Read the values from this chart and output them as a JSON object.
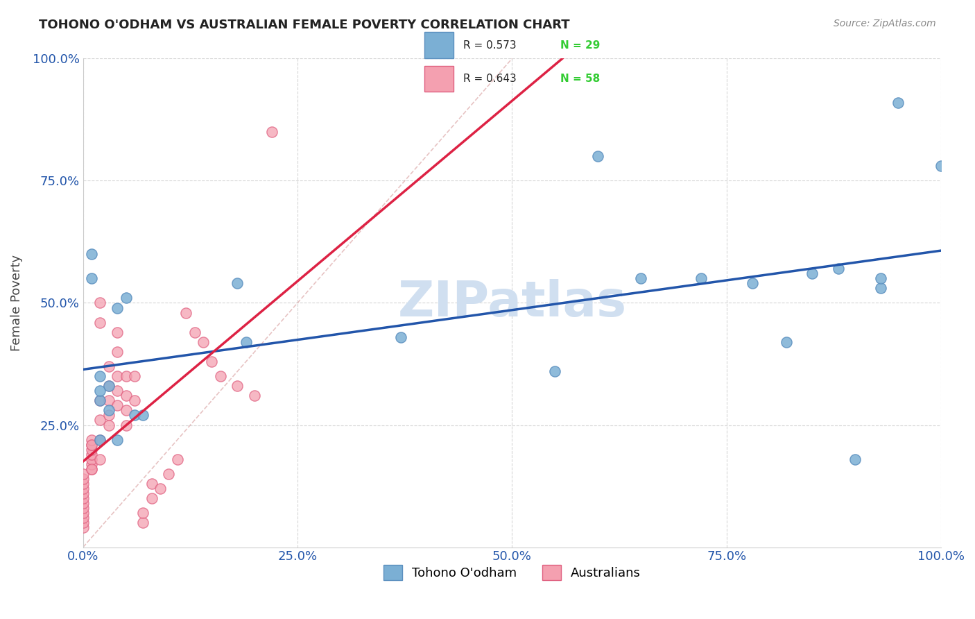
{
  "title": "TOHONO O'ODHAM VS AUSTRALIAN FEMALE POVERTY CORRELATION CHART",
  "source": "Source: ZipAtlas.com",
  "xlabel": "",
  "ylabel": "Female Poverty",
  "xlim": [
    0.0,
    1.0
  ],
  "ylim": [
    0.0,
    1.0
  ],
  "xtick_labels": [
    "0.0%",
    "25.0%",
    "50.0%",
    "75.0%",
    "100.0%"
  ],
  "xtick_vals": [
    0.0,
    0.25,
    0.5,
    0.75,
    1.0
  ],
  "ytick_labels": [
    "25.0%",
    "50.0%",
    "75.0%",
    "100.0%"
  ],
  "ytick_vals": [
    0.25,
    0.5,
    0.75,
    1.0
  ],
  "grid_color": "#cccccc",
  "background_color": "#ffffff",
  "watermark_text": "ZIPatlas",
  "watermark_color": "#d0dff0",
  "tohono_color": "#7bafd4",
  "tohono_edge_color": "#5b8fbf",
  "australians_color": "#f4a0b0",
  "australians_edge_color": "#e06080",
  "tohono_R": 0.573,
  "tohono_N": 29,
  "australians_R": 0.643,
  "australians_N": 58,
  "legend_R_color": "#3366cc",
  "legend_N_color": "#33cc33",
  "tohono_line_color": "#2255aa",
  "australians_line_color": "#dd2244",
  "diagonal_color": "#ddaaaa",
  "tohono_x": [
    0.02,
    0.04,
    0.02,
    0.01,
    0.01,
    0.02,
    0.02,
    0.03,
    0.03,
    0.04,
    0.05,
    0.06,
    0.07,
    0.18,
    0.19,
    0.37,
    0.55,
    0.6,
    0.65,
    0.72,
    0.78,
    0.82,
    0.85,
    0.88,
    0.9,
    0.93,
    0.93,
    0.95,
    1.0
  ],
  "tohono_y": [
    0.22,
    0.22,
    0.3,
    0.55,
    0.6,
    0.32,
    0.35,
    0.28,
    0.33,
    0.49,
    0.51,
    0.27,
    0.27,
    0.54,
    0.42,
    0.43,
    0.36,
    0.8,
    0.55,
    0.55,
    0.54,
    0.42,
    0.56,
    0.57,
    0.18,
    0.53,
    0.55,
    0.91,
    0.78
  ],
  "australians_x": [
    0.0,
    0.0,
    0.0,
    0.0,
    0.0,
    0.0,
    0.0,
    0.0,
    0.0,
    0.0,
    0.0,
    0.0,
    0.01,
    0.01,
    0.01,
    0.01,
    0.01,
    0.01,
    0.01,
    0.01,
    0.01,
    0.02,
    0.02,
    0.02,
    0.02,
    0.02,
    0.02,
    0.03,
    0.03,
    0.03,
    0.03,
    0.03,
    0.04,
    0.04,
    0.04,
    0.04,
    0.04,
    0.05,
    0.05,
    0.05,
    0.05,
    0.06,
    0.06,
    0.07,
    0.07,
    0.08,
    0.08,
    0.09,
    0.1,
    0.11,
    0.12,
    0.13,
    0.14,
    0.15,
    0.16,
    0.18,
    0.2,
    0.22
  ],
  "australians_y": [
    0.04,
    0.05,
    0.06,
    0.07,
    0.08,
    0.09,
    0.1,
    0.11,
    0.12,
    0.13,
    0.14,
    0.15,
    0.16,
    0.17,
    0.18,
    0.19,
    0.2,
    0.21,
    0.22,
    0.16,
    0.21,
    0.18,
    0.22,
    0.26,
    0.3,
    0.46,
    0.5,
    0.25,
    0.27,
    0.3,
    0.33,
    0.37,
    0.29,
    0.32,
    0.35,
    0.4,
    0.44,
    0.25,
    0.28,
    0.31,
    0.35,
    0.3,
    0.35,
    0.05,
    0.07,
    0.1,
    0.13,
    0.12,
    0.15,
    0.18,
    0.48,
    0.44,
    0.42,
    0.38,
    0.35,
    0.33,
    0.31,
    0.85
  ]
}
